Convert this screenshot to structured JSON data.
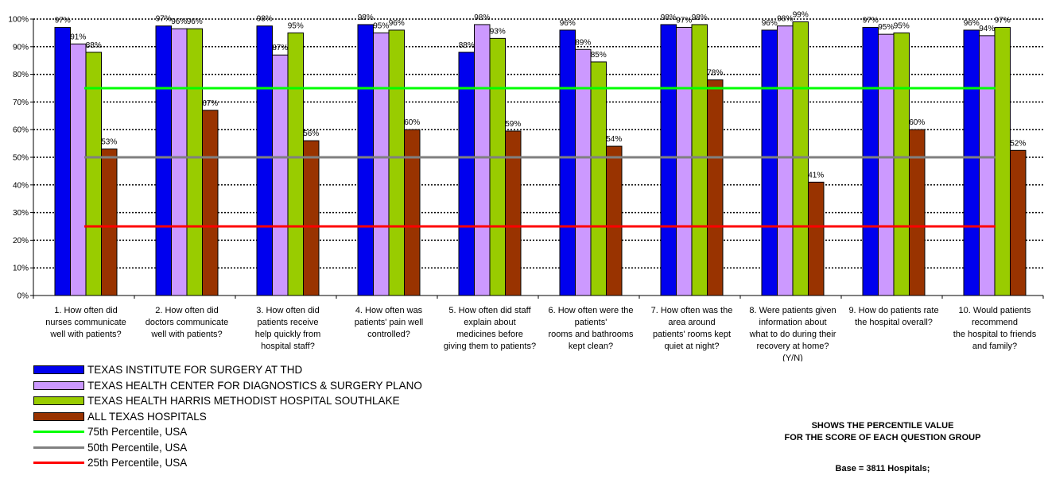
{
  "chart_data": {
    "type": "bar",
    "ylim": [
      0,
      100
    ],
    "y_tick_labels": [
      "0%",
      "10%",
      "20%",
      "30%",
      "40%",
      "50%",
      "60%",
      "70%",
      "80%",
      "90%",
      "100%"
    ],
    "grid": "dotted horizontal",
    "categories": [
      "1. How often did nurses communicate well with patients?",
      "2. How often did doctors communicate well with patients?",
      "3. How often did patients receive help quickly from hospital staff?",
      "4. How often was patients' pain well controlled?",
      "5. How often did staff explain about medicines before giving them to patients?",
      "6. How often were the patients' rooms and bathrooms kept clean?",
      "7. How often was the area around patients' rooms kept quiet at night?",
      "8. Were patients given information about what to do during their recovery at home? (Y/N)",
      "9. How do patients rate the hospital overall?",
      "10. Would patients recommend the hospital to friends and family?"
    ],
    "category_lines": [
      [
        "1. How often did",
        "nurses communicate",
        "well with patients?"
      ],
      [
        "2. How often did",
        "doctors communicate",
        "well with patients?"
      ],
      [
        "3. How often did",
        "patients receive",
        "help quickly from",
        "hospital staff?"
      ],
      [
        "4. How often was",
        "patients' pain well",
        "controlled?"
      ],
      [
        "5. How often did staff",
        "explain about",
        "medicines before",
        "giving them to patients?"
      ],
      [
        "6. How often were the",
        "patients'",
        "rooms and bathrooms",
        "kept clean?"
      ],
      [
        "7. How often was the",
        "area around",
        "patients' rooms kept",
        "quiet at night?"
      ],
      [
        "8. Were patients given",
        "information about",
        "what to do during their",
        "recovery at home?",
        "(Y/N)"
      ],
      [
        "9. How do patients rate",
        "the hospital overall?"
      ],
      [
        "10. Would patients",
        "recommend",
        "the hospital to friends",
        "and family?"
      ]
    ],
    "series": [
      {
        "name": "TEXAS INSTITUTE FOR SURGERY AT THD",
        "color": "#0000ee",
        "values": [
          97,
          97.5,
          97.5,
          98,
          88,
          96,
          98,
          96,
          97,
          96
        ],
        "labels": [
          "97%",
          "97%",
          "98%",
          "98%",
          "88%",
          "96%",
          "98%",
          "96%",
          "97%",
          "96%"
        ]
      },
      {
        "name": "TEXAS HEALTH CENTER FOR DIAGNOSTICS & SURGERY PLANO",
        "color": "#cc99ff",
        "values": [
          91,
          96.5,
          87,
          95,
          98,
          89,
          97,
          97.5,
          94.5,
          94
        ],
        "labels": [
          "91%",
          "96%",
          "87%",
          "95%",
          "98%",
          "89%",
          "97%",
          "98%",
          "95%",
          "94%"
        ]
      },
      {
        "name": "TEXAS HEALTH HARRIS METHODIST HOSPITAL SOUTHLAKE",
        "color": "#99cc00",
        "values": [
          88,
          96.5,
          95,
          96,
          93,
          84.5,
          98,
          99,
          95,
          97
        ],
        "labels": [
          "88%",
          "96%",
          "95%",
          "96%",
          "93%",
          "85%",
          "98%",
          "99%",
          "95%",
          "97%"
        ]
      },
      {
        "name": "ALL TEXAS HOSPITALS",
        "color": "#993300",
        "values": [
          53,
          67,
          56,
          60,
          59.5,
          54,
          78,
          41,
          60,
          52.5
        ],
        "labels": [
          "53%",
          "67%",
          "56%",
          "60%",
          "59%",
          "54%",
          "78%",
          "41%",
          "60%",
          "52%"
        ]
      }
    ],
    "reference_lines": [
      {
        "name": "75th Percentile, USA",
        "value": 75,
        "color": "#00ff00"
      },
      {
        "name": "50th Percentile, USA",
        "value": 50,
        "color": "#808080"
      },
      {
        "name": "25th Percentile, USA",
        "value": 25,
        "color": "#ff0000"
      }
    ],
    "legend_placement": "bottom-left"
  },
  "notes": {
    "line1": "SHOWS THE PERCENTILE VALUE",
    "line2": "FOR THE SCORE OF EACH QUESTION GROUP",
    "base": "Base = 3811 Hospitals;"
  }
}
